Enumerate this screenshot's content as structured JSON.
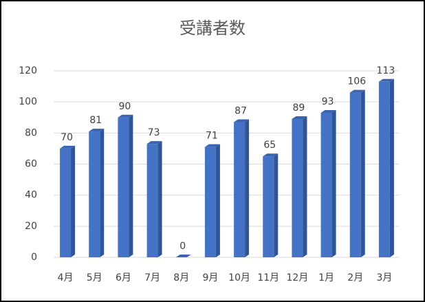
{
  "chart_data": {
    "type": "bar",
    "title": "受講者数",
    "categories": [
      "4月",
      "5月",
      "6月",
      "7月",
      "8月",
      "9月",
      "10月",
      "11月",
      "12月",
      "1月",
      "2月",
      "3月"
    ],
    "values": [
      70,
      81,
      90,
      73,
      0,
      71,
      87,
      65,
      89,
      93,
      106,
      113
    ],
    "color": "#4472c4",
    "ylim": [
      0,
      120
    ],
    "yticks": [
      0,
      20,
      40,
      60,
      80,
      100,
      120
    ],
    "grid": true
  }
}
